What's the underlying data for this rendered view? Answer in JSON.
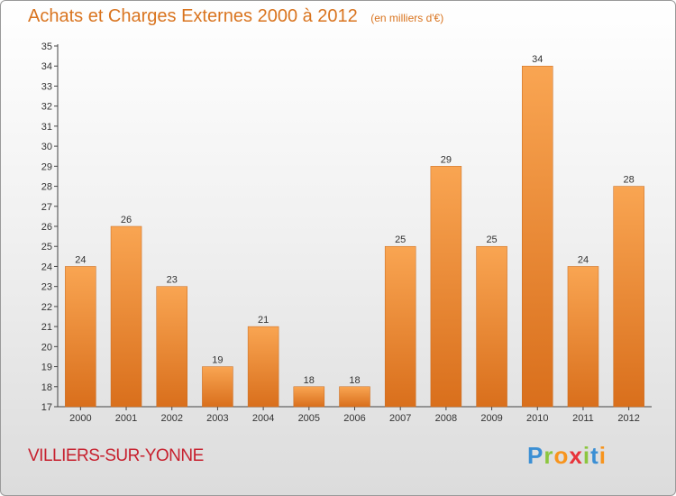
{
  "title": "Achats et Charges Externes 2000 à 2012",
  "subtitle": "(en milliers d'€)",
  "city": "VILLIERS-SUR-YONNE",
  "logo": {
    "letters": [
      "P",
      "r",
      "o",
      "x",
      "i",
      "t",
      "i"
    ],
    "colors": [
      "#3b8fd4",
      "#8cc63f",
      "#f7941d",
      "#e8333a",
      "#8cc63f",
      "#3b8fd4",
      "#f7941d"
    ]
  },
  "colors": {
    "title": "#d9741f",
    "city": "#c7202e",
    "bar_top": "#f9a552",
    "bar_bottom": "#d96f1c"
  },
  "chart_data": {
    "type": "bar",
    "title": "Achats et Charges Externes 2000 à 2012",
    "unit": "(en milliers d'€)",
    "categories": [
      "2000",
      "2001",
      "2002",
      "2003",
      "2004",
      "2005",
      "2006",
      "2007",
      "2008",
      "2009",
      "2010",
      "2011",
      "2012"
    ],
    "values": [
      24,
      26,
      23,
      19,
      21,
      18,
      18,
      25,
      29,
      25,
      34,
      24,
      28
    ],
    "ylim": [
      17,
      35
    ],
    "yticks": [
      17,
      18,
      19,
      20,
      21,
      22,
      23,
      24,
      25,
      26,
      27,
      28,
      29,
      30,
      31,
      32,
      33,
      34,
      35
    ],
    "xlabel": "",
    "ylabel": "",
    "grid": false
  }
}
